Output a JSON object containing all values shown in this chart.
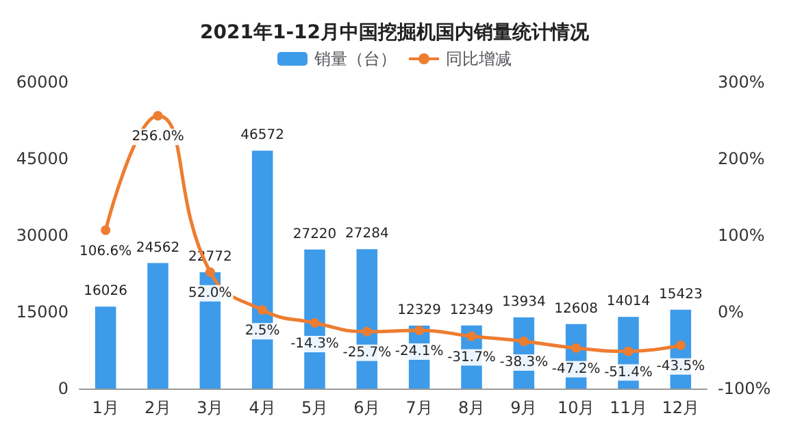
{
  "chart_data": {
    "type": "bar",
    "title": "2021年1-12月中国挖掘机国内销量统计情况",
    "categories": [
      "1月",
      "2月",
      "3月",
      "4月",
      "5月",
      "6月",
      "7月",
      "8月",
      "9月",
      "10月",
      "11月",
      "12月"
    ],
    "series": [
      {
        "name": "销量（台）",
        "color": "#3d9be9",
        "values": [
          16026,
          24562,
          22772,
          46572,
          27220,
          27284,
          12329,
          12349,
          13934,
          12608,
          14014,
          15423
        ],
        "data_labels": true
      },
      {
        "name": "同比增减",
        "type": "line",
        "axis": "y2",
        "color": "#ed7d31",
        "marker": "circle",
        "values": [
          106.6,
          256.0,
          52.0,
          2.5,
          -14.3,
          -25.7,
          -24.1,
          -31.7,
          -38.3,
          -47.2,
          -51.4,
          -43.5
        ],
        "value_labels": [
          "106.6%",
          "256.0%",
          "52.0%",
          "2.5%",
          "-14.3%",
          "-25.7%",
          "-24.1%",
          "-31.7%",
          "-38.3%",
          "-47.2%",
          "-51.4%",
          "-43.5%"
        ]
      }
    ],
    "ylim": [
      0,
      60000
    ],
    "yticks": [
      0,
      15000,
      30000,
      45000,
      60000
    ],
    "y2lim": [
      -100,
      300
    ],
    "y2ticks": [
      {
        "value": -100,
        "label": "-100%"
      },
      {
        "value": 0,
        "label": "0%"
      },
      {
        "value": 100,
        "label": "100%"
      },
      {
        "value": 200,
        "label": "200%"
      },
      {
        "value": 300,
        "label": "300%"
      }
    ],
    "legend": "top",
    "grid": false
  }
}
